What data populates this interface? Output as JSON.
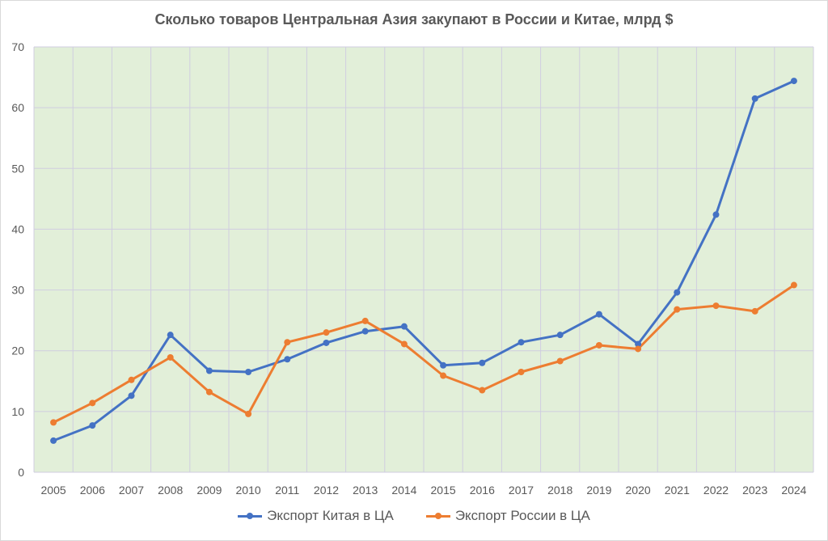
{
  "chart_data": {
    "type": "line",
    "title": "Сколько товаров Центральная Азия закупают в России и Китае, млрд $",
    "xlabel": "",
    "ylabel": "",
    "x": [
      "2005",
      "2006",
      "2007",
      "2008",
      "2009",
      "2010",
      "2011",
      "2012",
      "2013",
      "2014",
      "2015",
      "2016",
      "2017",
      "2018",
      "2019",
      "2020",
      "2021",
      "2022",
      "2023",
      "2024"
    ],
    "ylim": [
      0,
      70
    ],
    "yticks": [
      "0",
      "10",
      "20",
      "30",
      "40",
      "50",
      "60",
      "70"
    ],
    "grid": true,
    "legend_position": "bottom",
    "plot_background": "#e2efd9",
    "series": [
      {
        "name": "Экспорт Китая в ЦА",
        "color": "#4472c4",
        "values": [
          5.2,
          7.7,
          12.6,
          22.6,
          16.7,
          16.5,
          18.6,
          21.3,
          23.2,
          24.0,
          17.6,
          18.0,
          21.4,
          22.6,
          26.0,
          21.1,
          29.6,
          42.4,
          61.5,
          64.4
        ]
      },
      {
        "name": "Экспорт России в ЦА",
        "color": "#ed7d31",
        "values": [
          8.2,
          11.4,
          15.2,
          18.9,
          13.2,
          9.6,
          21.4,
          23.0,
          24.9,
          21.1,
          15.9,
          13.5,
          16.5,
          18.3,
          20.9,
          20.3,
          26.8,
          27.4,
          26.5,
          30.8
        ]
      }
    ]
  }
}
